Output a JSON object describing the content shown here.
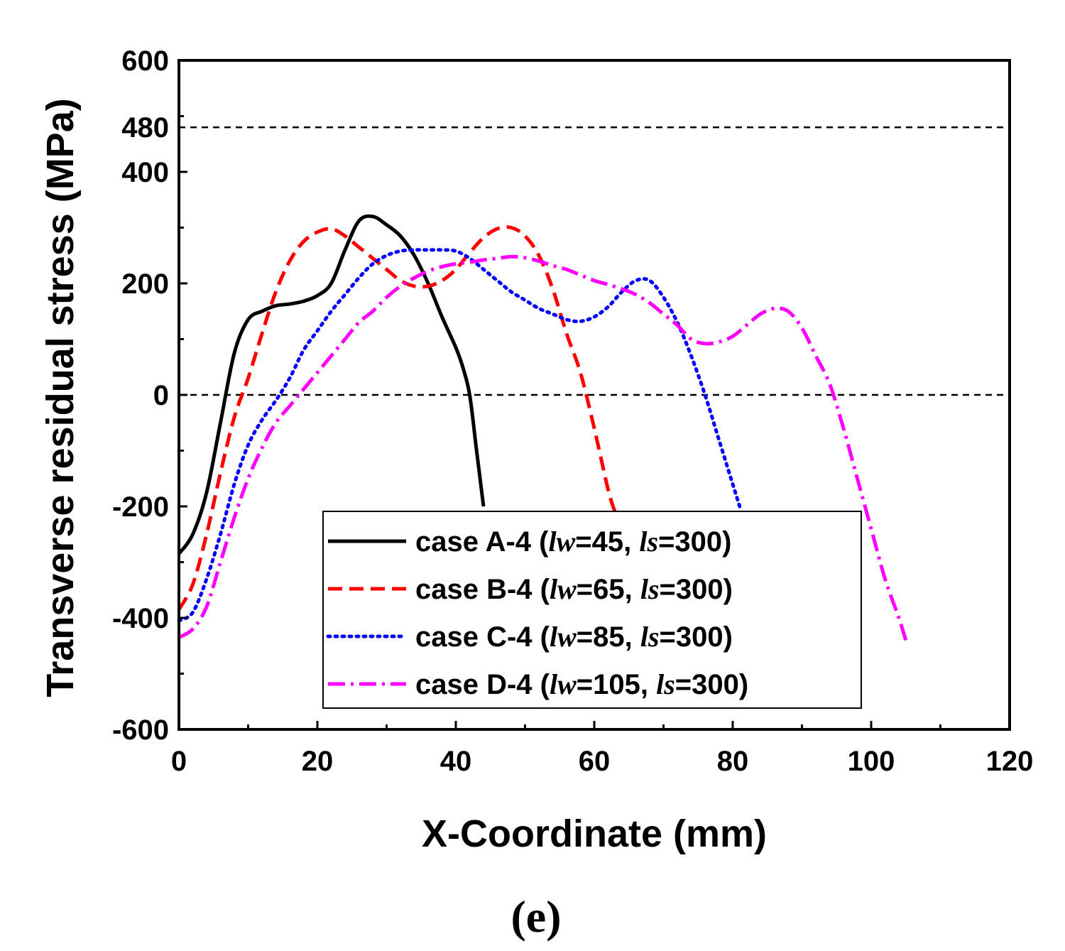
{
  "chart_data": {
    "type": "line",
    "xlabel": "X-Coordinate (mm)",
    "ylabel": "Transverse residual stress (MPa)",
    "xlim": [
      0,
      120
    ],
    "ylim": [
      -600,
      600
    ],
    "xticks": [
      0,
      20,
      40,
      60,
      80,
      100,
      120
    ],
    "yticks": [
      600,
      480,
      400,
      200,
      0,
      -200,
      -400,
      -600
    ],
    "reference_lines": [
      480,
      0
    ],
    "panel_label": "(e)",
    "legend_position": "bottom-center",
    "series": [
      {
        "name": "case A-4 (lw=45, ls=300)",
        "label_prefix": "case A-4 (",
        "label_lw": "lw",
        "label_lw_val": "=45, ",
        "label_ls": "ls",
        "label_ls_val": "=300)",
        "color": "#000000",
        "style": "solid",
        "x": [
          0,
          2,
          4,
          6,
          8,
          10,
          12,
          14,
          16,
          18,
          20,
          22,
          24,
          26,
          28,
          30,
          32,
          34,
          36,
          38,
          40,
          41,
          42,
          43,
          44
        ],
        "y": [
          -285,
          -250,
          -175,
          -50,
          75,
          135,
          150,
          160,
          163,
          168,
          178,
          200,
          260,
          312,
          320,
          305,
          285,
          250,
          200,
          140,
          85,
          50,
          0,
          -100,
          -200
        ]
      },
      {
        "name": "case B-4 (lw=65, ls=300)",
        "label_prefix": "case B-4 (",
        "label_lw": "lw",
        "label_lw_val": "=65, ",
        "label_ls": "ls",
        "label_ls_val": "=300)",
        "color": "#ff0000",
        "style": "dashed",
        "x": [
          0,
          2,
          4,
          6,
          8,
          10,
          12,
          14,
          16,
          18,
          20,
          22,
          24,
          26,
          28,
          30,
          32,
          34,
          36,
          38,
          40,
          42,
          44,
          46,
          48,
          50,
          52,
          54,
          56,
          58,
          60,
          62,
          63
        ],
        "y": [
          -385,
          -340,
          -250,
          -140,
          -40,
          30,
          110,
          185,
          240,
          275,
          292,
          298,
          285,
          265,
          245,
          225,
          205,
          195,
          195,
          205,
          225,
          255,
          282,
          298,
          300,
          285,
          250,
          190,
          110,
          40,
          -60,
          -170,
          -210
        ]
      },
      {
        "name": "case C-4 (lw=85, ls=300)",
        "label_prefix": "case C-4 (",
        "label_lw": "lw",
        "label_lw_val": "=85, ",
        "label_ls": "ls",
        "label_ls_val": "=300)",
        "color": "#0000ff",
        "style": "dotted",
        "x": [
          0,
          2,
          4,
          6,
          8,
          10,
          12,
          14,
          16,
          18,
          20,
          22,
          24,
          26,
          28,
          30,
          32,
          34,
          36,
          38,
          40,
          42,
          44,
          46,
          48,
          50,
          52,
          54,
          56,
          58,
          60,
          62,
          64,
          66,
          68,
          70,
          72,
          74,
          76,
          78,
          80,
          81
        ],
        "y": [
          -405,
          -390,
          -330,
          -250,
          -160,
          -90,
          -45,
          -10,
          30,
          80,
          115,
          150,
          180,
          210,
          235,
          250,
          258,
          260,
          260,
          260,
          258,
          245,
          225,
          205,
          185,
          170,
          155,
          145,
          135,
          132,
          140,
          158,
          185,
          205,
          205,
          175,
          130,
          70,
          0,
          -80,
          -160,
          -200
        ]
      },
      {
        "name": "case D-4 (lw=105, ls=300)",
        "label_prefix": "case D-4 (",
        "label_lw": "lw",
        "label_lw_val": "=105, ",
        "label_ls": "ls",
        "label_ls_val": "=300)",
        "color": "#ff00ff",
        "style": "dashdot",
        "x": [
          0,
          2,
          4,
          6,
          8,
          10,
          12,
          14,
          16,
          18,
          20,
          22,
          24,
          26,
          28,
          30,
          32,
          34,
          36,
          38,
          40,
          42,
          44,
          46,
          48,
          50,
          52,
          54,
          56,
          58,
          60,
          62,
          64,
          66,
          68,
          70,
          72,
          74,
          76,
          78,
          80,
          82,
          84,
          86,
          88,
          90,
          92,
          94,
          96,
          98,
          100,
          102,
          104,
          105
        ],
        "y": [
          -435,
          -420,
          -380,
          -300,
          -220,
          -150,
          -95,
          -50,
          -20,
          10,
          40,
          70,
          100,
          130,
          150,
          175,
          195,
          210,
          222,
          230,
          235,
          238,
          242,
          245,
          248,
          246,
          240,
          232,
          225,
          215,
          205,
          198,
          190,
          180,
          165,
          145,
          125,
          100,
          92,
          95,
          105,
          125,
          145,
          155,
          150,
          120,
          70,
          20,
          -60,
          -150,
          -240,
          -330,
          -400,
          -440
        ]
      }
    ]
  }
}
